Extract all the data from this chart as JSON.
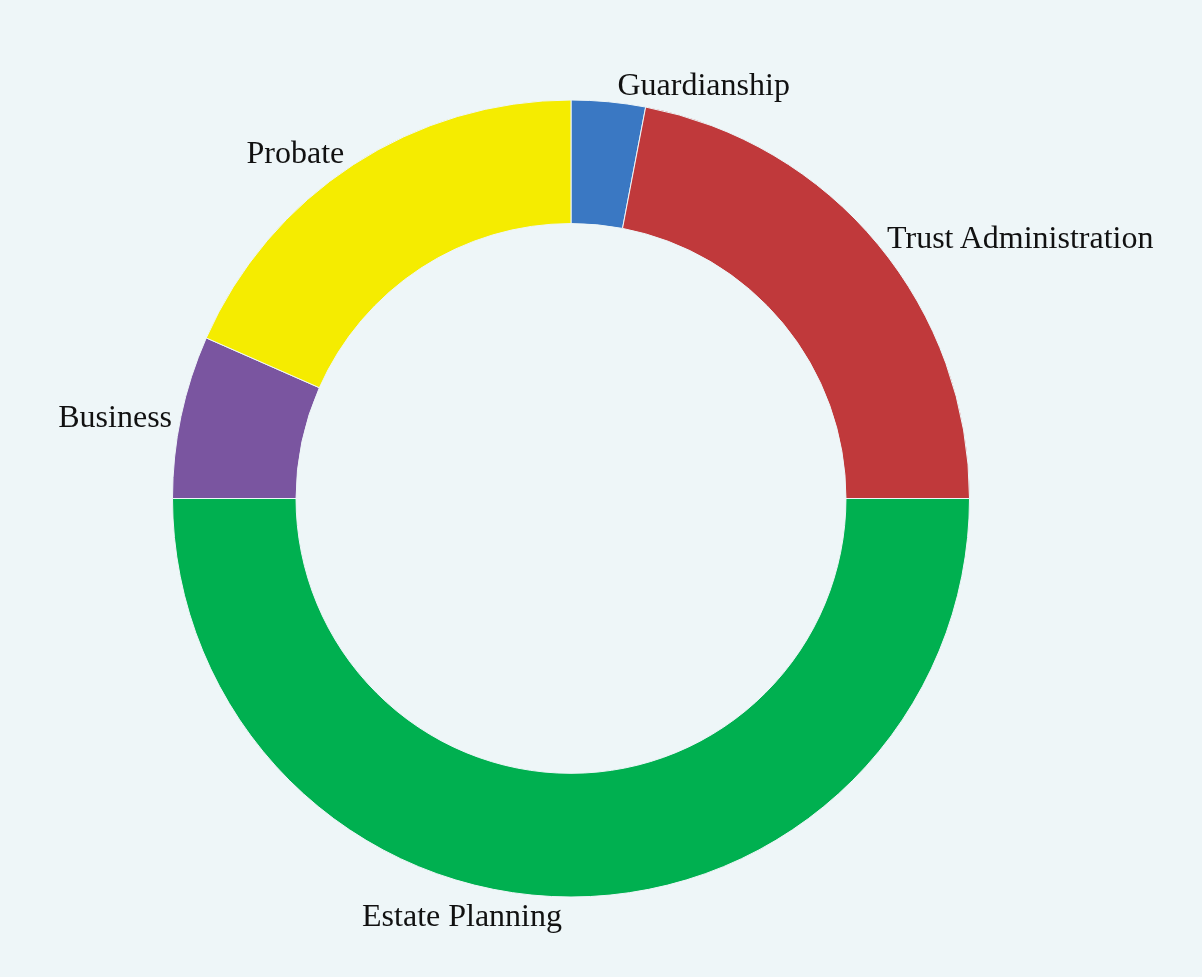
{
  "chart_data": {
    "type": "donut",
    "categories": [
      "Guardianship",
      "Trust Administration",
      "Estate Planning",
      "Business",
      "Probate"
    ],
    "values": [
      3,
      22,
      50,
      6.6,
      18.4
    ],
    "colors": [
      "#3a78c3",
      "#c0393b",
      "#00b050",
      "#7a55a0",
      "#f5ec00"
    ]
  }
}
